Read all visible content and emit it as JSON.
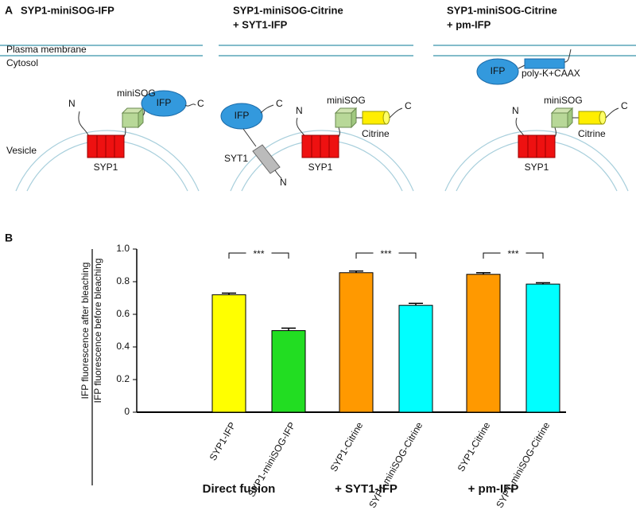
{
  "panel_a": {
    "label": "A",
    "membrane": "Plasma membrane",
    "cytosol": "Cytosol",
    "vesicle": "Vesicle",
    "panels": [
      {
        "title": [
          "SYP1-miniSOG-IFP"
        ],
        "n": "N",
        "c": "C",
        "minisog": "miniSOG",
        "ifp": "IFP",
        "syp1": "SYP1"
      },
      {
        "title": [
          "SYP1-miniSOG-Citrine",
          "+ SYT1-IFP"
        ],
        "ifp": "IFP",
        "c_ifp": "C",
        "syt1": "SYT1",
        "n_syt1": "N",
        "n": "N",
        "minisog": "miniSOG",
        "citrine": "Citrine",
        "c": "C",
        "syp1": "SYP1"
      },
      {
        "title": [
          "SYP1-miniSOG-Citrine",
          "+ pm-IFP"
        ],
        "ifp": "IFP",
        "polyk": "poly-K+CAAX",
        "n": "N",
        "minisog": "miniSOG",
        "citrine": "Citrine",
        "c": "C",
        "syp1": "SYP1"
      }
    ]
  },
  "chart_data": {
    "type": "bar",
    "panel_label": "B",
    "ylabel": [
      "IFP fluorescence after bleaching",
      "IFP fluorescence before bleaching"
    ],
    "categories": [
      "SYP1-IFP",
      "SYP1-miniSOG-IFP",
      "SYP1-Citrine",
      "SYP1-miniSOG-Citrine",
      "SYP1-Citrine",
      "SYP1-miniSOG-Citrine"
    ],
    "values": [
      0.72,
      0.5,
      0.855,
      0.655,
      0.845,
      0.785
    ],
    "errors": [
      0.01,
      0.015,
      0.01,
      0.012,
      0.01,
      0.008
    ],
    "colors": [
      "#ffff00",
      "#22dd22",
      "#ff9900",
      "#00ffff",
      "#ff9900",
      "#00ffff"
    ],
    "groups": [
      "Direct fusion",
      "+ SYT1-IFP",
      "+ pm-IFP"
    ],
    "significance": [
      "***",
      "***",
      "***"
    ],
    "ylim": [
      0,
      1
    ],
    "yticks": [
      0,
      0.2,
      0.4,
      0.6,
      0.8,
      {
        "value": 1,
        "label": "1.0"
      }
    ]
  }
}
